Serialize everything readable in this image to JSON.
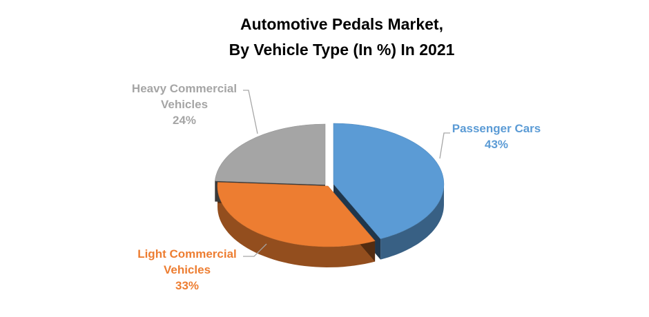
{
  "chart_data": {
    "type": "pie",
    "title": [
      "Automotive Pedals Market,",
      "By Vehicle Type (In %) In 2021"
    ],
    "categories": [
      "Passenger Cars",
      "Light Commercial Vehicles",
      "Heavy Commercial Vehicles"
    ],
    "values": [
      43,
      33,
      24
    ],
    "unit": "%",
    "data_labels": [
      {
        "lines": [
          "Passenger Cars",
          "43%"
        ],
        "color": "#5b9bd5"
      },
      {
        "lines": [
          "Light Commercial",
          "Vehicles",
          "33%"
        ],
        "color": "#ed7d31"
      },
      {
        "lines": [
          "Heavy Commercial",
          "Vehicles",
          "24%"
        ],
        "color": "#a5a5a5"
      }
    ],
    "colors": [
      "#5b9bd5",
      "#ed7d31",
      "#a5a5a5"
    ],
    "style": "3d-exploded",
    "legend": "none"
  }
}
